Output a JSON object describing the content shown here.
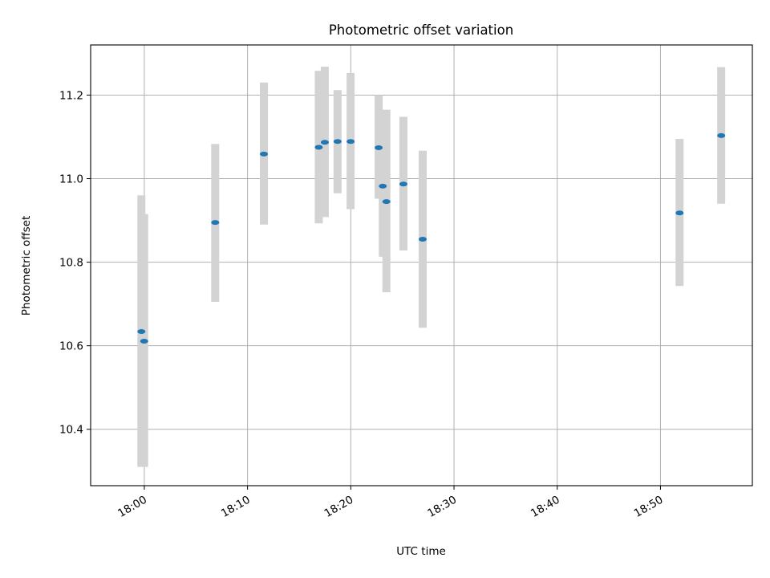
{
  "chart_data": {
    "type": "scatter",
    "title": "Photometric offset variation",
    "xlabel": "UTC time",
    "ylabel": "Photometric offset",
    "x_axis_type": "time",
    "xlim": [
      "17:54:48",
      "18:58:54"
    ],
    "ylim": [
      10.265,
      11.32
    ],
    "xticks": [
      "18:00",
      "18:10",
      "18:20",
      "18:30",
      "18:40",
      "18:50"
    ],
    "yticks": [
      10.4,
      10.6,
      10.8,
      11.0,
      11.2
    ],
    "grid": true,
    "legend": "none",
    "error_bar_color": "#d3d3d3",
    "marker_color": "#1f77b4",
    "points": [
      {
        "time": "17:59:43",
        "y": 10.634,
        "y_low": 10.31,
        "y_high": 10.96
      },
      {
        "time": "17:59:59",
        "y": 10.611,
        "y_low": 10.31,
        "y_high": 10.915
      },
      {
        "time": "18:06:52",
        "y": 10.895,
        "y_low": 10.705,
        "y_high": 11.083
      },
      {
        "time": "18:11:35",
        "y": 11.059,
        "y_low": 10.89,
        "y_high": 11.23
      },
      {
        "time": "18:16:54",
        "y": 11.075,
        "y_low": 10.893,
        "y_high": 11.258
      },
      {
        "time": "18:17:29",
        "y": 11.087,
        "y_low": 10.908,
        "y_high": 11.268
      },
      {
        "time": "18:18:43",
        "y": 11.089,
        "y_low": 10.965,
        "y_high": 11.212
      },
      {
        "time": "18:19:59",
        "y": 11.089,
        "y_low": 10.927,
        "y_high": 11.253
      },
      {
        "time": "18:22:42",
        "y": 11.074,
        "y_low": 10.952,
        "y_high": 11.2
      },
      {
        "time": "18:23:06",
        "y": 10.982,
        "y_low": 10.813,
        "y_high": 11.153
      },
      {
        "time": "18:23:27",
        "y": 10.945,
        "y_low": 10.728,
        "y_high": 11.165
      },
      {
        "time": "18:25:06",
        "y": 10.987,
        "y_low": 10.828,
        "y_high": 11.148
      },
      {
        "time": "18:26:58",
        "y": 10.855,
        "y_low": 10.643,
        "y_high": 11.067
      },
      {
        "time": "18:51:51",
        "y": 10.918,
        "y_low": 10.743,
        "y_high": 11.095
      },
      {
        "time": "18:55:53",
        "y": 11.103,
        "y_low": 10.94,
        "y_high": 11.267
      }
    ]
  }
}
